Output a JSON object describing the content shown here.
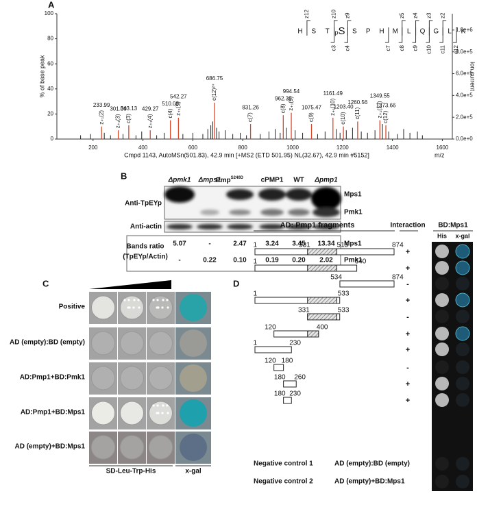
{
  "panel_labels": {
    "a": "A",
    "b": "B",
    "c": "C",
    "d": "D"
  },
  "chart_data": {
    "type": "spectrum",
    "y_label": "% of base peak",
    "y2_label": "ion current",
    "x_caption": "Cmpd 1143, AutoMSn(501.83), 42.9 min [+MS2 (ETD 501.95) NL(32.67), 42.9 min #5152]",
    "x_unit": "m/z",
    "xlim": [
      55,
      1640
    ],
    "xticks": [
      200,
      400,
      600,
      800,
      1000,
      1200,
      1400,
      1600
    ],
    "ylim": [
      0,
      100
    ],
    "yticks": [
      0,
      20,
      40,
      60,
      80,
      100
    ],
    "y2lim": [
      0,
      1150000
    ],
    "y2ticks": [
      {
        "value": 0,
        "label": "0.0e+0"
      },
      {
        "value": 200000,
        "label": "2.0e+5"
      },
      {
        "value": 400000,
        "label": "4.0e+5"
      },
      {
        "value": 600000,
        "label": "6.0e+5"
      },
      {
        "value": 800000,
        "label": "8.0e+5"
      },
      {
        "value": 1000000,
        "label": "1.0e+6"
      }
    ],
    "label_color": "#d9472b",
    "peak_color": "#222",
    "peaks": [
      {
        "mz": 233.99,
        "label": "233.99",
        "ion": "z₊₁(2)",
        "intensity": 10
      },
      {
        "mz": 301.09,
        "label": "301.09",
        "ion": "z₊₁(3)",
        "intensity": 7
      },
      {
        "mz": 343.13,
        "label": "343.13",
        "ion": "c(3)",
        "intensity": 11
      },
      {
        "mz": 429.27,
        "label": "429.27",
        "ion": "z₊₁(4)",
        "intensity": 7
      },
      {
        "mz": 510.08,
        "label": "510.08",
        "ion": "c(4)",
        "intensity": 15
      },
      {
        "mz": 542.27,
        "label": "542.27",
        "ion": "z₊₁(5)",
        "intensity": 17
      },
      {
        "mz": 686.75,
        "label": "686.75",
        "ion": "c(12)²⁺",
        "intensity": 29
      },
      {
        "mz": 831.26,
        "label": "831.26",
        "ion": "c(7)",
        "intensity": 12
      },
      {
        "mz": 962.39,
        "label": "962.39",
        "ion": "c(8)",
        "intensity": 19
      },
      {
        "mz": 994.54,
        "label": "994.54",
        "ion": "z₊₁(9)",
        "intensity": 21
      },
      {
        "mz": 1075.47,
        "label": "1075.47",
        "ion": "c(9)",
        "intensity": 12
      },
      {
        "mz": 1161.49,
        "label": "1161.49",
        "ion": "z₊₁(10)",
        "intensity": 17
      },
      {
        "mz": 1203.4,
        "label": "1203.40",
        "ion": "c(10)",
        "intensity": 10
      },
      {
        "mz": 1260.56,
        "label": "1260.56",
        "ion": "c(11)",
        "intensity": 14
      },
      {
        "mz": 1349.55,
        "label": "1349.55",
        "ion": "z₊₁(12)",
        "intensity": 15
      },
      {
        "mz": 1373.66,
        "label": "1373.66",
        "ion": "c(12)",
        "intensity": 11
      }
    ],
    "other_peaks": {
      "mz": [
        150,
        190,
        245,
        270,
        320,
        372,
        395,
        455,
        485,
        560,
        600,
        640,
        660,
        672,
        680,
        695,
        705,
        730,
        760,
        790,
        815,
        870,
        905,
        930,
        950,
        975,
        1010,
        1040,
        1100,
        1130,
        1175,
        1190,
        1215,
        1240,
        1275,
        1300,
        1330,
        1360,
        1385,
        1420,
        1445,
        1470,
        1500,
        1520
      ],
      "intensity": [
        3,
        4,
        5,
        3,
        4,
        3,
        6,
        3,
        5,
        4,
        5,
        4,
        8,
        11,
        14,
        9,
        6,
        7,
        4,
        5,
        3,
        4,
        6,
        8,
        5,
        9,
        7,
        5,
        4,
        6,
        8,
        5,
        7,
        9,
        6,
        5,
        7,
        12,
        6,
        4,
        8,
        5,
        6,
        3
      ]
    }
  },
  "sequence": {
    "residues": [
      "H",
      "S",
      "T",
      {
        "mod": "p",
        "aa": "S"
      },
      "S",
      "P",
      "H",
      "M",
      "L",
      "Q",
      "G",
      "L",
      "K"
    ],
    "z_ions": [
      "z12",
      "z10",
      "z9",
      "z5",
      "z4",
      "z3",
      "z2"
    ],
    "c_ions": [
      "c3",
      "c4",
      "c7",
      "c8",
      "c9",
      "c10",
      "c11",
      "c12"
    ]
  },
  "blot": {
    "lanes": [
      "Δpmk1",
      "Δmps1",
      {
        "base": "Pmp",
        "sup": "S240D"
      },
      "cPMP1",
      "WT",
      "Δpmp1"
    ],
    "antibody_label": "Anti-TpEYp",
    "actin_label": "Anti-actin",
    "ratio_label": "Bands ratio",
    "ratio_sub": "(TpEYp/Actin)",
    "band_labels": [
      "Mps1",
      "Pmk1"
    ],
    "ratios": [
      {
        "name": "Mps1",
        "values": [
          "5.07",
          "-",
          "2.47",
          "3.24",
          "3.45",
          "13.34"
        ]
      },
      {
        "name": "Pmk1",
        "values": [
          "-",
          "0.22",
          "0.10",
          "0.19",
          "0.20",
          "2.02"
        ]
      }
    ]
  },
  "yeast_spots": {
    "rows": [
      "Positive",
      "AD (empty):BD (empty)",
      "AD:Pmp1+BD:Pmk1",
      "AD:Pmp1+BD:Mps1",
      "AD (empty)+BD:Mps1"
    ],
    "media_label": "SD-Leu-Trp-His",
    "xgal_label": "x-gal"
  },
  "fragments": {
    "title": "AD: Pmp1 fragments",
    "interaction_header": "Interaction",
    "bd_header": "BD:Mps1",
    "columns": [
      "His",
      "x-gal"
    ],
    "rows": [
      {
        "ticks": [
          1,
          331,
          515,
          874
        ],
        "interaction": "+"
      },
      {
        "ticks": [
          1,
          640
        ],
        "interaction": "+"
      },
      {
        "ticks": [
          534,
          874
        ],
        "interaction": "-"
      },
      {
        "ticks": [
          1,
          533
        ],
        "interaction": "+"
      },
      {
        "ticks": [
          331,
          533
        ],
        "interaction": "-"
      },
      {
        "ticks": [
          120,
          400
        ],
        "interaction": "+"
      },
      {
        "ticks": [
          1,
          230
        ],
        "interaction": "+"
      },
      {
        "ticks": [
          120,
          180
        ],
        "interaction": "-"
      },
      {
        "ticks": [
          180,
          260
        ],
        "interaction": "+"
      },
      {
        "ticks": [
          180,
          230
        ],
        "interaction": "+"
      }
    ],
    "controls": [
      {
        "name": "Negative control 1",
        "construct": "AD (empty):BD (empty)"
      },
      {
        "name": "Negative control 2",
        "construct": "AD (empty)+BD:Mps1"
      }
    ]
  }
}
